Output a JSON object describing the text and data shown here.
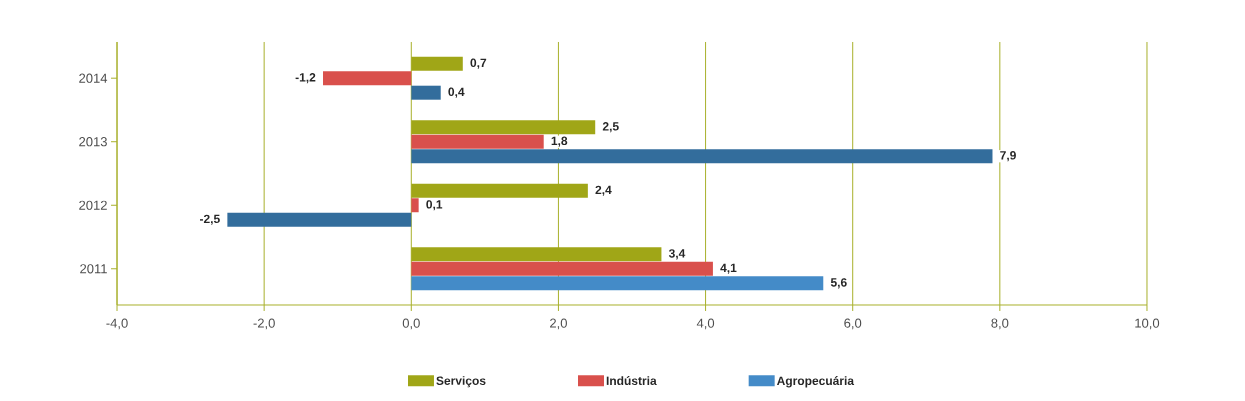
{
  "chart_data": {
    "type": "bar",
    "orientation": "horizontal",
    "categories": [
      "2014",
      "2013",
      "2012",
      "2011"
    ],
    "series": [
      {
        "name": "Serviços",
        "color": "#a0a617",
        "values": [
          0.7,
          2.5,
          2.4,
          3.4
        ],
        "value_labels": [
          "0,7",
          "2,5",
          "2,4",
          "3,4"
        ]
      },
      {
        "name": "Indústria",
        "color": "#d9504c",
        "values": [
          -1.2,
          1.8,
          0.1,
          4.1
        ],
        "value_labels": [
          "-1,2",
          "1,8",
          "0,1",
          "4,1"
        ]
      },
      {
        "name": "Agropecuária",
        "color": "#448bc8",
        "colors": [
          "#336d9c",
          "#336d9c",
          "#336d9c",
          "#448bc8"
        ],
        "values": [
          0.4,
          7.9,
          -2.5,
          5.6
        ],
        "value_labels": [
          "0,4",
          "7,9",
          "-2,5",
          "5,6"
        ]
      }
    ],
    "xlim": [
      -4,
      10
    ],
    "xticks": [
      {
        "value": -4,
        "label": "-4,0"
      },
      {
        "value": -2,
        "label": "-2,0"
      },
      {
        "value": 0,
        "label": "0,0"
      },
      {
        "value": 2,
        "label": "2,0"
      },
      {
        "value": 4,
        "label": "4,0"
      },
      {
        "value": 6,
        "label": "6,0"
      },
      {
        "value": 8,
        "label": "8,0"
      },
      {
        "value": 10,
        "label": "10,0"
      }
    ],
    "grid": "x",
    "legend": "bottom"
  }
}
